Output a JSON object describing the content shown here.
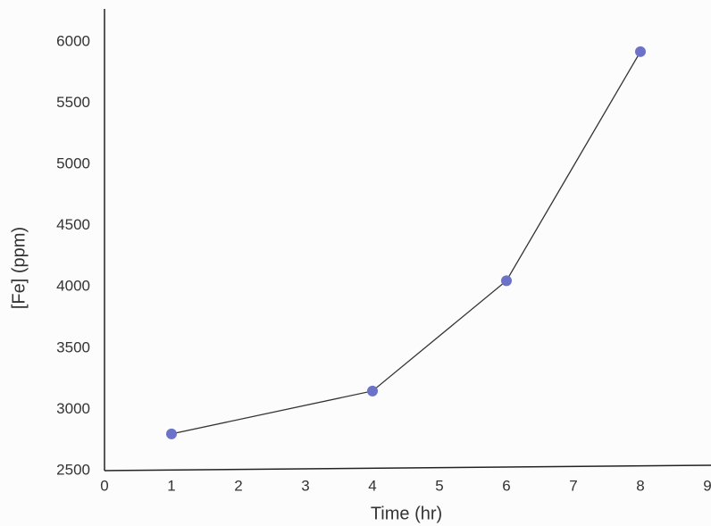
{
  "chart_data": {
    "type": "line",
    "x": [
      1,
      4,
      6,
      8
    ],
    "values": [
      2800,
      3150,
      4050,
      5920
    ],
    "color": "#6b72c8",
    "line_color": "#333333",
    "xlabel": "Time (hr)",
    "ylabel": "[Fe] (ppm)",
    "xlim": [
      0,
      9
    ],
    "xticks": [
      0,
      1,
      2,
      3,
      4,
      5,
      6,
      7,
      8,
      9
    ],
    "ylim": [
      2500,
      6200
    ],
    "yticks": [
      2500,
      3000,
      3500,
      4000,
      4500,
      5000,
      5500,
      6000
    ],
    "grid": false
  }
}
